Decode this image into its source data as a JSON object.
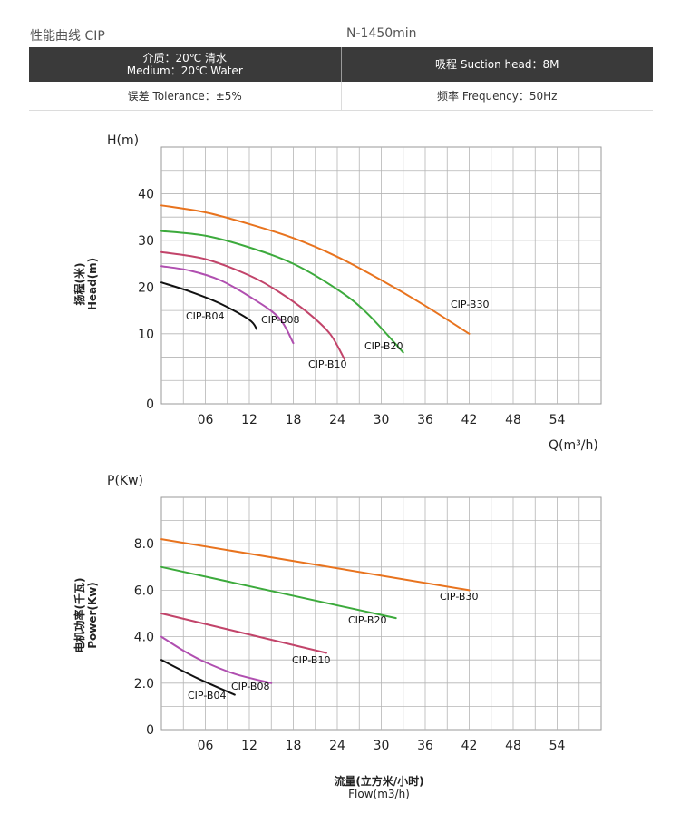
{
  "header": {
    "title": "性能曲线 CIP",
    "speed": "N-1450min"
  },
  "spec": {
    "medium_cn": "介质：20℃ 清水",
    "medium_en": "Medium：20℃ Water",
    "suction": "吸程 Suction head：8M",
    "tolerance": "误差 Tolerance：±5%",
    "frequency": "频率 Frequency：50Hz"
  },
  "colors": {
    "CIP-B30": "#e8731e",
    "CIP-B20": "#3caa3c",
    "CIP-B10": "#c2446a",
    "CIP-B08": "#b04fb0",
    "CIP-B04": "#111111"
  },
  "chart_data": [
    {
      "type": "line",
      "ylabel_top": "H(m)",
      "ylabel_side_cn": "扬程(米)",
      "ylabel_side_en": "Head(m)",
      "xlabel": "Q(m³/h)",
      "xlim": [
        0,
        60
      ],
      "ylim": [
        -5,
        50
      ],
      "x_ticks": [
        "06",
        "12",
        "18",
        "24",
        "30",
        "36",
        "42",
        "48",
        "54"
      ],
      "y_ticks": [
        "40",
        "30",
        "20",
        "10",
        "0"
      ],
      "grid": true,
      "series": [
        {
          "name": "CIP-B30",
          "points": [
            [
              0,
              37.5
            ],
            [
              6,
              36.0
            ],
            [
              12,
              33.5
            ],
            [
              18,
              30.5
            ],
            [
              24,
              26.5
            ],
            [
              30,
              21.5
            ],
            [
              36,
              16.0
            ],
            [
              42,
              10.0
            ]
          ]
        },
        {
          "name": "CIP-B20",
          "points": [
            [
              0,
              32.0
            ],
            [
              6,
              31.0
            ],
            [
              12,
              28.5
            ],
            [
              18,
              25.0
            ],
            [
              24,
              19.5
            ],
            [
              28,
              14.5
            ],
            [
              33,
              6.0
            ]
          ]
        },
        {
          "name": "CIP-B10",
          "points": [
            [
              0,
              27.5
            ],
            [
              6,
              26.0
            ],
            [
              12,
              22.5
            ],
            [
              16,
              19.0
            ],
            [
              20,
              14.5
            ],
            [
              23,
              10.0
            ],
            [
              25,
              4.5
            ]
          ]
        },
        {
          "name": "CIP-B08",
          "points": [
            [
              0,
              24.5
            ],
            [
              4,
              23.5
            ],
            [
              8,
              21.5
            ],
            [
              12,
              18.0
            ],
            [
              16,
              13.5
            ],
            [
              18,
              8.0
            ]
          ]
        },
        {
          "name": "CIP-B04",
          "points": [
            [
              0,
              21.0
            ],
            [
              4,
              19.0
            ],
            [
              8,
              16.5
            ],
            [
              12,
              13.0
            ],
            [
              13,
              11.0
            ]
          ]
        }
      ]
    },
    {
      "type": "line",
      "ylabel_top": "P(Kw)",
      "ylabel_side_cn": "电机功率(千瓦)",
      "ylabel_side_en": "Power(Kw)",
      "xlabel_cn": "流量(立方米/小时)",
      "xlabel_en": "Flow(m3/h)",
      "xlim": [
        0,
        60
      ],
      "ylim": [
        0,
        10
      ],
      "x_ticks": [
        "06",
        "12",
        "18",
        "24",
        "30",
        "36",
        "42",
        "48",
        "54"
      ],
      "y_ticks": [
        "8.0",
        "6.0",
        "4.0",
        "2.0",
        "0"
      ],
      "grid": true,
      "series": [
        {
          "name": "CIP-B30",
          "points": [
            [
              0,
              8.2
            ],
            [
              42,
              6.0
            ]
          ]
        },
        {
          "name": "CIP-B20",
          "points": [
            [
              0,
              7.0
            ],
            [
              32,
              4.8
            ]
          ]
        },
        {
          "name": "CIP-B10",
          "points": [
            [
              0,
              5.0
            ],
            [
              22.5,
              3.3
            ]
          ]
        },
        {
          "name": "CIP-B08",
          "points": [
            [
              0,
              4.0
            ],
            [
              3,
              3.4
            ],
            [
              6,
              2.9
            ],
            [
              10,
              2.4
            ],
            [
              15,
              2.0
            ]
          ]
        },
        {
          "name": "CIP-B04",
          "points": [
            [
              0,
              3.0
            ],
            [
              5,
              2.2
            ],
            [
              10,
              1.5
            ]
          ]
        }
      ]
    }
  ]
}
